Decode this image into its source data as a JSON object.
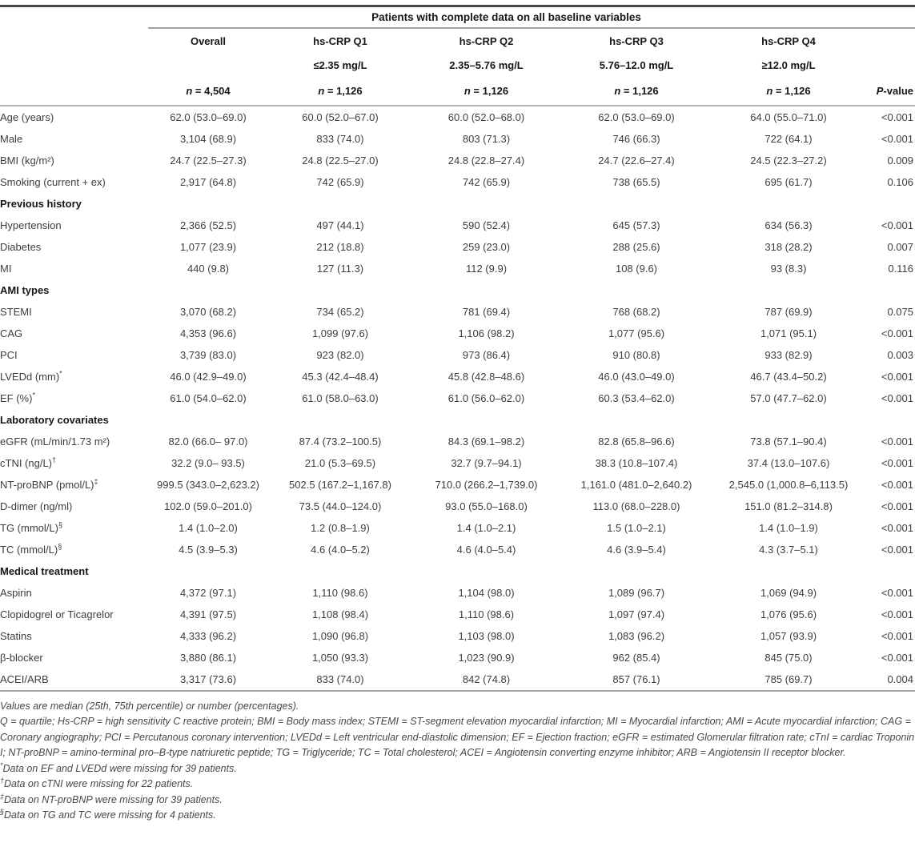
{
  "table": {
    "spanning_header": "Patients with complete data on all baseline variables",
    "pvalue_header": {
      "italic": "P",
      "rest": "-value"
    },
    "columns": [
      {
        "title": "Overall",
        "range": "",
        "n_italic": "n",
        "n_rest": " = 4,504"
      },
      {
        "title": "hs-CRP Q1",
        "range": "≤2.35 mg/L",
        "n_italic": "n",
        "n_rest": " = 1,126"
      },
      {
        "title": "hs-CRP Q2",
        "range": "2.35–5.76 mg/L",
        "n_italic": "n",
        "n_rest": " = 1,126"
      },
      {
        "title": "hs-CRP Q3",
        "range": "5.76–12.0 mg/L",
        "n_italic": "n",
        "n_rest": " = 1,126"
      },
      {
        "title": "hs-CRP Q4",
        "range": "≥12.0 mg/L",
        "n_italic": "n",
        "n_rest": " = 1,126"
      }
    ],
    "rows": [
      {
        "type": "data",
        "label": "Age (years)",
        "sup": "",
        "values": [
          "62.0 (53.0–69.0)",
          "60.0 (52.0–67.0)",
          "60.0 (52.0–68.0)",
          "62.0 (53.0–69.0)",
          "64.0 (55.0–71.0)"
        ],
        "p": "<0.001"
      },
      {
        "type": "data",
        "label": "Male",
        "sup": "",
        "values": [
          "3,104 (68.9)",
          "833 (74.0)",
          "803 (71.3)",
          "746 (66.3)",
          "722 (64.1)"
        ],
        "p": "<0.001"
      },
      {
        "type": "data",
        "label": "BMI (kg/m²)",
        "sup": "",
        "values": [
          "24.7 (22.5–27.3)",
          "24.8 (22.5–27.0)",
          "24.8 (22.8–27.4)",
          "24.7 (22.6–27.4)",
          "24.5 (22.3–27.2)"
        ],
        "p": "0.009"
      },
      {
        "type": "data",
        "label": "Smoking (current + ex)",
        "sup": "",
        "values": [
          "2,917 (64.8)",
          "742 (65.9)",
          "742 (65.9)",
          "738 (65.5)",
          "695 (61.7)"
        ],
        "p": "0.106"
      },
      {
        "type": "section",
        "label": "Previous history"
      },
      {
        "type": "data",
        "label": "Hypertension",
        "sup": "",
        "values": [
          "2,366 (52.5)",
          "497 (44.1)",
          "590 (52.4)",
          "645 (57.3)",
          "634 (56.3)"
        ],
        "p": "<0.001"
      },
      {
        "type": "data",
        "label": "Diabetes",
        "sup": "",
        "values": [
          "1,077 (23.9)",
          "212 (18.8)",
          "259 (23.0)",
          "288 (25.6)",
          "318 (28.2)"
        ],
        "p": "0.007"
      },
      {
        "type": "data",
        "label": "MI",
        "sup": "",
        "values": [
          "440 (9.8)",
          "127 (11.3)",
          "112 (9.9)",
          "108 (9.6)",
          "93 (8.3)"
        ],
        "p": "0.116"
      },
      {
        "type": "section",
        "label": "AMI types"
      },
      {
        "type": "data",
        "label": "STEMI",
        "sup": "",
        "values": [
          "3,070 (68.2)",
          "734 (65.2)",
          "781 (69.4)",
          "768 (68.2)",
          "787 (69.9)"
        ],
        "p": "0.075"
      },
      {
        "type": "data",
        "label": "CAG",
        "sup": "",
        "values": [
          "4,353 (96.6)",
          "1,099 (97.6)",
          "1,106 (98.2)",
          "1,077 (95.6)",
          "1,071 (95.1)"
        ],
        "p": "<0.001"
      },
      {
        "type": "data",
        "label": "PCI",
        "sup": "",
        "values": [
          "3,739 (83.0)",
          "923 (82.0)",
          "973 (86.4)",
          "910 (80.8)",
          "933 (82.9)"
        ],
        "p": "0.003"
      },
      {
        "type": "data",
        "label": "LVEDd (mm)",
        "sup": "*",
        "values": [
          "46.0 (42.9–49.0)",
          "45.3 (42.4–48.4)",
          "45.8 (42.8–48.6)",
          "46.0 (43.0–49.0)",
          "46.7 (43.4–50.2)"
        ],
        "p": "<0.001"
      },
      {
        "type": "data",
        "label": "EF (%)",
        "sup": "*",
        "values": [
          "61.0 (54.0–62.0)",
          "61.0 (58.0–63.0)",
          "61.0 (56.0–62.0)",
          "60.3 (53.4–62.0)",
          "57.0 (47.7–62.0)"
        ],
        "p": "<0.001"
      },
      {
        "type": "section",
        "label": "Laboratory covariates"
      },
      {
        "type": "data",
        "label": "eGFR (mL/min/1.73 m²)",
        "sup": "",
        "values": [
          "82.0 (66.0– 97.0)",
          "87.4 (73.2–100.5)",
          "84.3 (69.1–98.2)",
          "82.8 (65.8–96.6)",
          "73.8 (57.1–90.4)"
        ],
        "p": "<0.001"
      },
      {
        "type": "data",
        "label": "cTNI (ng/L)",
        "sup": "†",
        "values": [
          "32.2 (9.0– 93.5)",
          "21.0 (5.3–69.5)",
          "32.7 (9.7–94.1)",
          "38.3 (10.8–107.4)",
          "37.4 (13.0–107.6)"
        ],
        "p": "<0.001"
      },
      {
        "type": "data",
        "label": "NT-proBNP (pmol/L)",
        "sup": "‡",
        "values": [
          "999.5 (343.0–2,623.2)",
          "502.5 (167.2–1,167.8)",
          "710.0 (266.2–1,739.0)",
          "1,161.0 (481.0–2,640.2)",
          "2,545.0 (1,000.8–6,113.5)"
        ],
        "p": "<0.001"
      },
      {
        "type": "data",
        "label": "D-dimer (ng/ml)",
        "sup": "",
        "values": [
          "102.0 (59.0–201.0)",
          "73.5 (44.0–124.0)",
          "93.0 (55.0–168.0)",
          "113.0 (68.0–228.0)",
          "151.0 (81.2–314.8)"
        ],
        "p": "<0.001"
      },
      {
        "type": "data",
        "label": "TG (mmol/L)",
        "sup": "§",
        "values": [
          "1.4 (1.0–2.0)",
          "1.2 (0.8–1.9)",
          "1.4 (1.0–2.1)",
          "1.5 (1.0–2.1)",
          "1.4 (1.0–1.9)"
        ],
        "p": "<0.001"
      },
      {
        "type": "data",
        "label": "TC (mmol/L)",
        "sup": "§",
        "values": [
          "4.5 (3.9–5.3)",
          "4.6 (4.0–5.2)",
          "4.6 (4.0–5.4)",
          "4.6 (3.9–5.4)",
          "4.3 (3.7–5.1)"
        ],
        "p": "<0.001"
      },
      {
        "type": "section",
        "label": "Medical treatment"
      },
      {
        "type": "data",
        "label": "Aspirin",
        "sup": "",
        "values": [
          "4,372 (97.1)",
          "1,110 (98.6)",
          "1,104 (98.0)",
          "1,089 (96.7)",
          "1,069 (94.9)"
        ],
        "p": "<0.001"
      },
      {
        "type": "data",
        "label": "Clopidogrel or Ticagrelor",
        "sup": "",
        "values": [
          "4,391 (97.5)",
          "1,108 (98.4)",
          "1,110 (98.6)",
          "1,097 (97.4)",
          "1,076 (95.6)"
        ],
        "p": "<0.001"
      },
      {
        "type": "data",
        "label": "Statins",
        "sup": "",
        "values": [
          "4,333 (96.2)",
          "1,090 (96.8)",
          "1,103 (98.0)",
          "1,083 (96.2)",
          "1,057 (93.9)"
        ],
        "p": "<0.001"
      },
      {
        "type": "data",
        "label": "β-blocker",
        "sup": "",
        "values": [
          "3,880 (86.1)",
          "1,050 (93.3)",
          "1,023 (90.9)",
          "962 (85.4)",
          "845 (75.0)"
        ],
        "p": "<0.001"
      },
      {
        "type": "data",
        "label": "ACEI/ARB",
        "sup": "",
        "values": [
          "3,317 (73.6)",
          "833 (74.0)",
          "842 (74.8)",
          "857 (76.1)",
          "785 (69.7)"
        ],
        "p": "0.004"
      }
    ]
  },
  "footnotes": {
    "values_note": "Values are median (25th, 75th percentile) or number (percentages).",
    "abbreviations": "Q = quartile; Hs-CRP = high sensitivity C reactive protein; BMI = Body mass index; STEMI = ST-segment elevation myocardial infarction; MI = Myocardial infarction; AMI = Acute myocardial infarction; CAG = Coronary angiography; PCI = Percutanous coronary intervention; LVEDd = Left ventricular end-diastolic dimension; EF = Ejection fraction; eGFR = estimated Glomerular filtration rate; cTnI = cardiac Troponin I; NT-proBNP = amino-terminal pro–B-type natriuretic peptide; TG = Triglyceride; TC = Total cholesterol; ACEI = Angiotensin converting enzyme inhibitor; ARB = Angiotensin II receptor blocker.",
    "missing_notes": [
      {
        "marker": "*",
        "text": "Data on EF and LVEDd were missing for 39 patients."
      },
      {
        "marker": "†",
        "text": "Data on cTNI were missing for 22 patients."
      },
      {
        "marker": "‡",
        "text": "Data on NT-proBNP were missing for 39 patients."
      },
      {
        "marker": "§",
        "text": "Data on TG and TC were missing for 4 patients."
      }
    ]
  },
  "colors": {
    "rule_dark": "#454545",
    "rule_light": "#a8a8a8",
    "body_text": "#3d3d3d",
    "header_text": "#161616"
  }
}
